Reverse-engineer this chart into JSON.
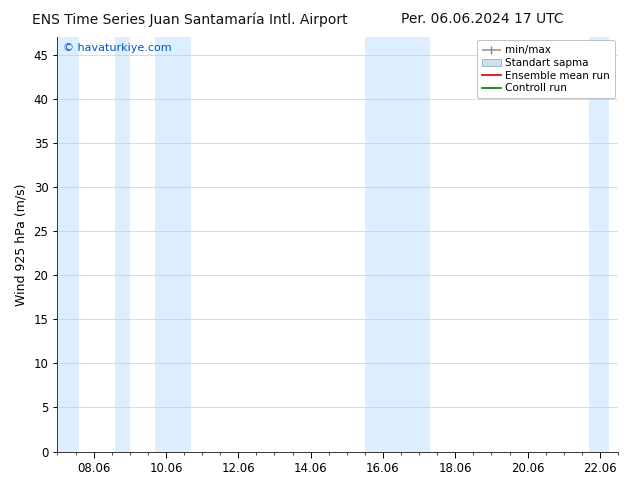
{
  "title_left": "ENS Time Series Juan Santamaría Intl. Airport",
  "title_right": "Per. 06.06.2024 17 UTC",
  "ylabel": "Wind 925 hPa (m/s)",
  "watermark": "© havaturkiye.com",
  "watermark_color": "#0055cc",
  "ylim": [
    0,
    47
  ],
  "yticks": [
    0,
    5,
    10,
    15,
    20,
    25,
    30,
    35,
    40,
    45
  ],
  "xlim_start": 0.0,
  "xlim_end": 15.25,
  "xtick_labels": [
    "08.06",
    "10.06",
    "12.06",
    "14.06",
    "16.06",
    "18.06",
    "20.06",
    "22.06"
  ],
  "xtick_positions": [
    1.0,
    3.0,
    5.0,
    7.0,
    9.0,
    11.0,
    13.0,
    15.0
  ],
  "blue_bands": [
    [
      0.0,
      0.6
    ],
    [
      1.6,
      2.0
    ],
    [
      2.7,
      3.7
    ],
    [
      8.5,
      9.5
    ],
    [
      9.5,
      10.3
    ],
    [
      14.7,
      15.25
    ]
  ],
  "band_color": "#ddeeff",
  "grid_color": "#cccccc",
  "background_color": "#ffffff",
  "plot_bg_color": "#ffffff",
  "legend_items": [
    "min/max",
    "Standart sapma",
    "Ensemble mean run",
    "Controll run"
  ],
  "title_fontsize": 10,
  "tick_fontsize": 8.5,
  "ylabel_fontsize": 9
}
